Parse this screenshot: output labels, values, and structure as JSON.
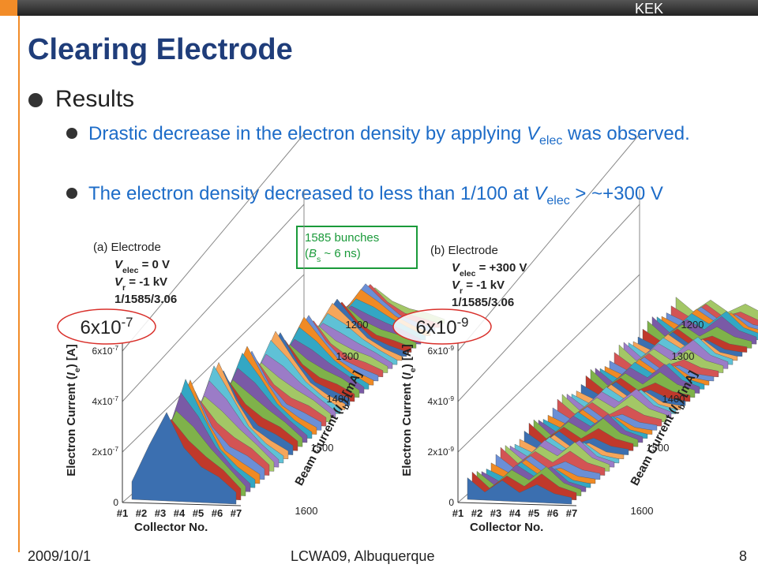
{
  "header": {
    "org": "KEK"
  },
  "title": "Clearing Electrode",
  "bullets": {
    "main": "Results",
    "items": [
      {
        "parts": [
          "Drastic decrease in the electron density by applying ",
          "V",
          "elec",
          " was observed."
        ]
      },
      {
        "parts": [
          "The electron density decreased to less than 1/100 at ",
          "V",
          "elec",
          " > ~+300 V"
        ]
      }
    ]
  },
  "callout": {
    "line1": "1585 bunches",
    "line2": [
      "(",
      "B",
      "s",
      " ~ 6 ns)"
    ]
  },
  "panels": [
    {
      "label": "(a) Electrode",
      "velec": [
        "V",
        "elec",
        " = 0 V"
      ],
      "vr": [
        "V",
        "r",
        " = -1 kV"
      ],
      "cond": "1/1585/3.06",
      "highlight": [
        "6x10",
        "-7"
      ],
      "yticks": [
        [
          "6x10",
          "-7"
        ],
        [
          "4x10",
          "-7"
        ],
        [
          "2x10",
          "-7"
        ],
        [
          "0"
        ]
      ],
      "ylabel": [
        "Electron Current (",
        "I",
        "e",
        ") [A]"
      ],
      "xticks": [
        "#1",
        "#2",
        "#3",
        "#4",
        "#5",
        "#6",
        "#7"
      ],
      "xlabel": "Collector No.",
      "zticks": [
        "1200",
        "1300",
        "1400",
        "1500",
        "1600"
      ],
      "zlabel": [
        "Beam Current (",
        "I",
        "b",
        ") [mA]"
      ]
    },
    {
      "label": "(b) Electrode",
      "velec": [
        "V",
        "elec",
        " = +300 V"
      ],
      "vr": [
        "V",
        "r",
        " = -1 kV"
      ],
      "cond": "1/1585/3.06",
      "highlight": [
        "6x10",
        "-9"
      ],
      "yticks": [
        [
          "6x10",
          "-9"
        ],
        [
          "4x10",
          "-9"
        ],
        [
          "2x10",
          "-9"
        ],
        [
          "0"
        ]
      ],
      "ylabel": [
        "Electron Current (",
        "I",
        "e",
        ") [A]"
      ],
      "xticks": [
        "#1",
        "#2",
        "#3",
        "#4",
        "#5",
        "#6",
        "#7"
      ],
      "xlabel": "Collector No.",
      "zticks": [
        "1200",
        "1300",
        "1400",
        "1500",
        "1600"
      ],
      "zlabel": [
        "Beam Current (",
        "I",
        "b",
        ") [mA]"
      ]
    }
  ],
  "footer": {
    "date": "2009/10/1",
    "venue": "LCWA09, Albuquerque",
    "page": "8"
  }
}
